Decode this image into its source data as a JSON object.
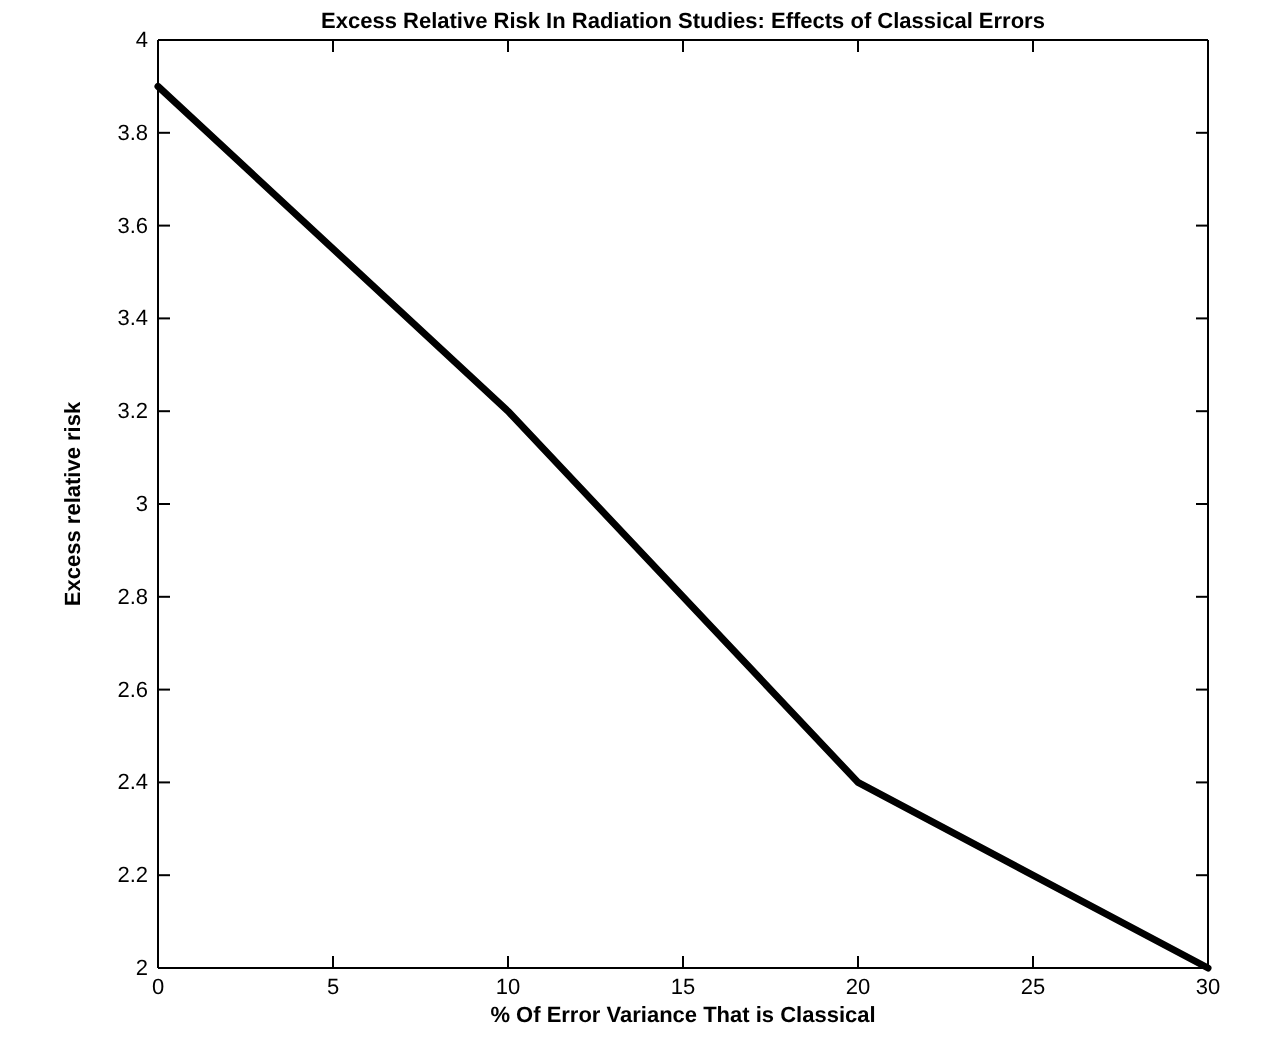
{
  "chart_data": {
    "type": "line",
    "title": "Excess Relative Risk In Radiation Studies: Effects of Classical Errors",
    "xlabel": "% Of Error Variance That is Classical",
    "ylabel": "Excess relative risk",
    "x": [
      0,
      10,
      20,
      30
    ],
    "series": [
      {
        "color": "#000000",
        "values": [
          3.9,
          3.2,
          2.4,
          2.0
        ]
      }
    ],
    "xlim": [
      0,
      30
    ],
    "xticks": [
      0,
      5,
      10,
      15,
      20,
      25,
      30
    ],
    "ylim": [
      2,
      4
    ],
    "yticks": [
      2,
      2.2,
      2.4,
      2.6,
      2.8,
      3,
      3.2,
      3.4,
      3.6,
      3.8,
      4
    ],
    "marker": "none",
    "line_style": "solid"
  }
}
